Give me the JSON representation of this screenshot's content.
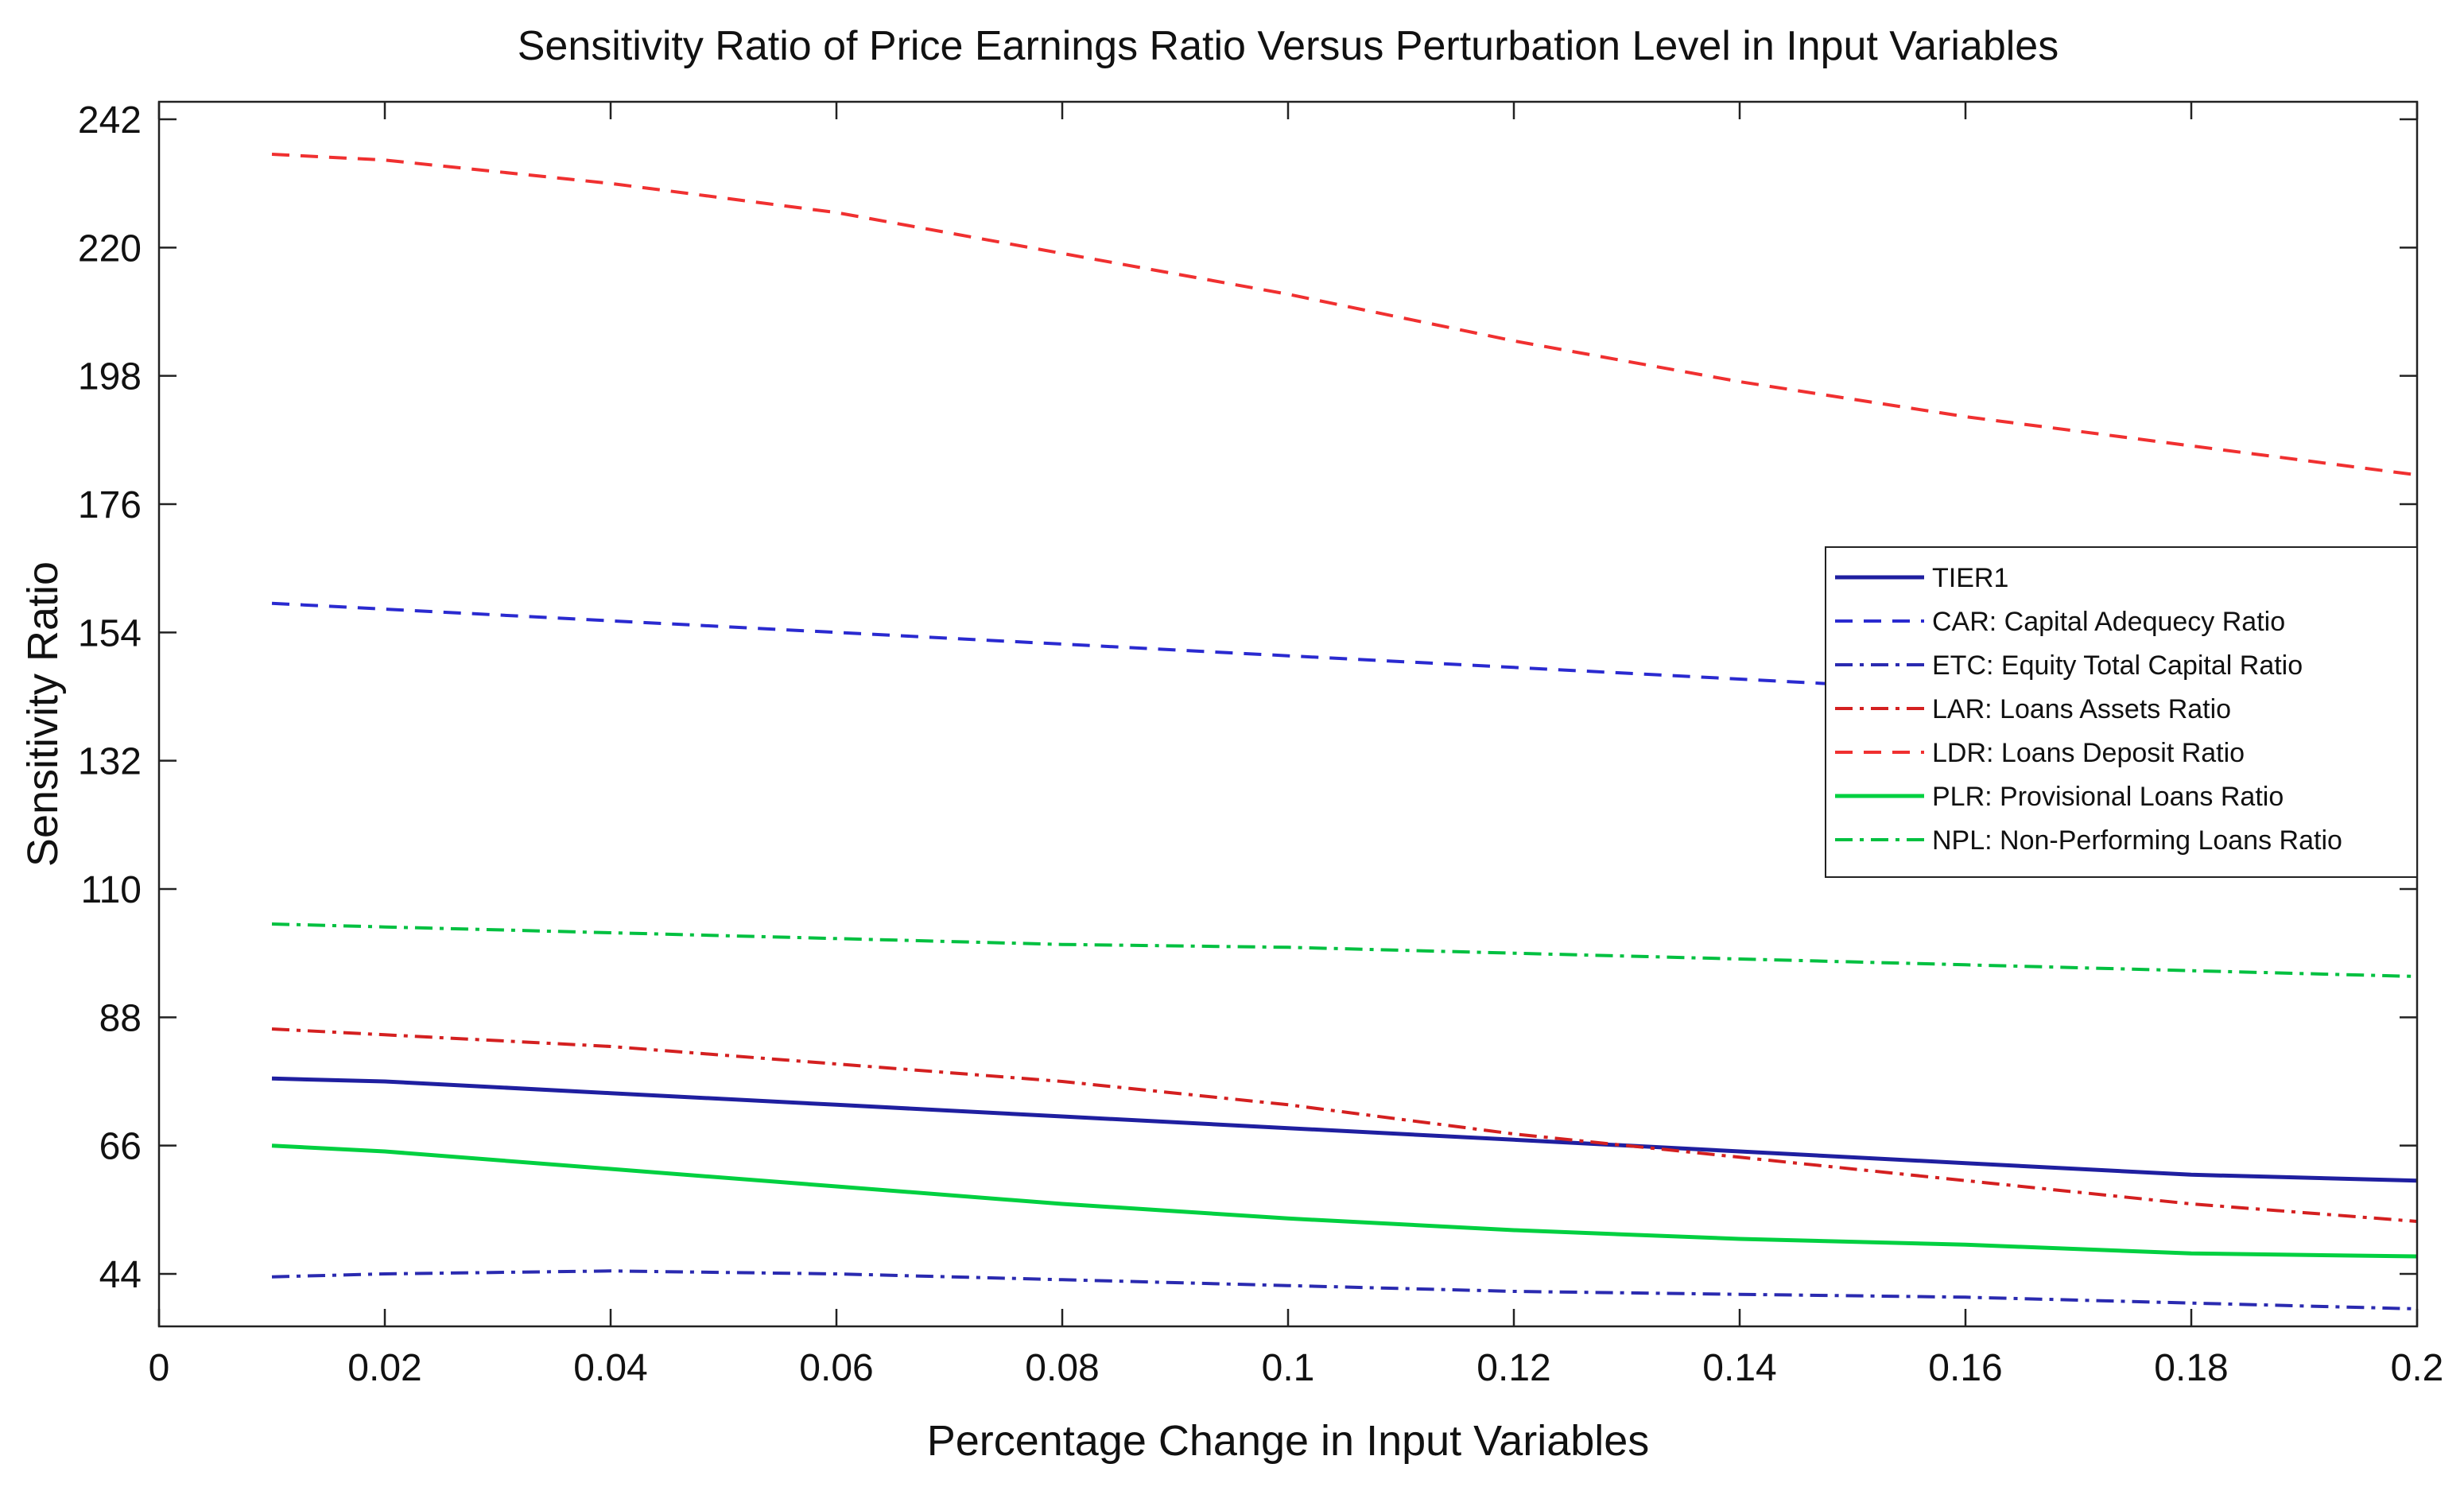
{
  "chart_data": {
    "type": "line",
    "title": "Sensitivity Ratio of Price Earnings Ratio Versus Perturbation Level in Input Variables",
    "xlabel": "Percentage Change in Input Variables",
    "ylabel": "Sensitivity Ratio",
    "xlim": [
      0,
      0.2
    ],
    "ylim": [
      35,
      245
    ],
    "x_ticks": [
      0,
      0.02,
      0.04,
      0.06,
      0.08,
      0.1,
      0.12,
      0.14,
      0.16,
      0.18,
      0.2
    ],
    "x_tick_labels": [
      "0",
      "0.02",
      "0.04",
      "0.06",
      "0.08",
      "0.1",
      "0.12",
      "0.14",
      "0.16",
      "0.18",
      "0.2"
    ],
    "y_ticks": [
      44,
      66,
      88,
      110,
      132,
      154,
      176,
      198,
      220,
      242
    ],
    "y_tick_labels": [
      "44",
      "66",
      "88",
      "110",
      "132",
      "154",
      "176",
      "198",
      "220",
      "242"
    ],
    "grid": false,
    "legend_position": "right",
    "x": [
      0.01,
      0.02,
      0.04,
      0.06,
      0.08,
      0.1,
      0.12,
      0.14,
      0.16,
      0.18,
      0.2
    ],
    "series": [
      {
        "name": "TIER1",
        "color": "#1f1fa0",
        "dash": "solid",
        "values": [
          77.5,
          77,
          75,
          73,
          71,
          69,
          67,
          65,
          63,
          61,
          60
        ]
      },
      {
        "name": "CAR: Capital Adequecy Ratio",
        "color": "#2a2ad0",
        "dash": "dashed",
        "values": [
          159,
          158,
          156,
          154,
          152,
          150,
          148,
          146,
          144,
          142,
          140
        ]
      },
      {
        "name": "ETC: Equity Total Capital Ratio",
        "color": "#2a2ab0",
        "dash": "dashdot",
        "values": [
          43.5,
          44,
          44.5,
          44,
          43,
          42,
          41,
          40.5,
          40,
          39,
          38
        ]
      },
      {
        "name": "LAR: Loans Assets Ratio",
        "color": "#d42020",
        "dash": "dashdot",
        "values": [
          86,
          85,
          83,
          80,
          77,
          73,
          68,
          64,
          60,
          56,
          53
        ]
      },
      {
        "name": "LDR: Loans Deposit Ratio",
        "color": "#f03030",
        "dash": "dashed",
        "values": [
          236,
          235,
          231,
          226,
          219,
          212,
          204,
          197,
          191,
          186,
          181
        ]
      },
      {
        "name": "PLR: Provisional Loans Ratio",
        "color": "#00d040",
        "dash": "solid",
        "values": [
          66,
          65,
          62,
          59,
          56,
          53.5,
          51.5,
          50,
          49,
          47.5,
          47
        ]
      },
      {
        "name": "NPL: Non-Performing Loans Ratio",
        "color": "#00c040",
        "dash": "dashdot",
        "values": [
          104,
          103.5,
          102.5,
          101.5,
          100.5,
          100,
          99,
          98,
          97,
          96,
          95
        ]
      }
    ]
  }
}
